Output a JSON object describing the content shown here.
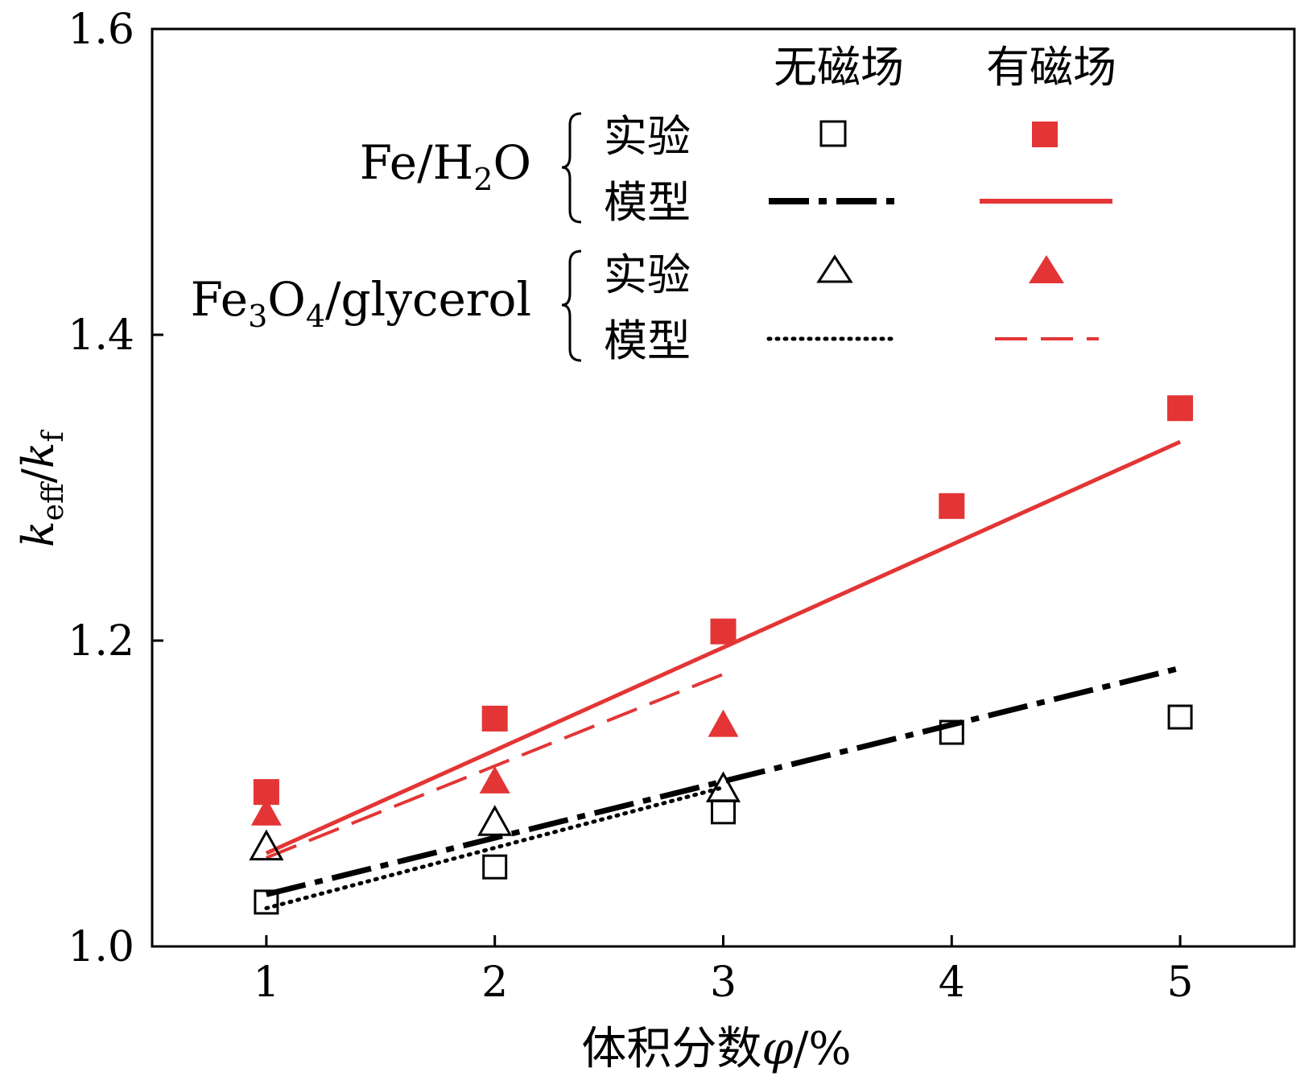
{
  "chart_data": {
    "type": "scatter",
    "title": "",
    "xlabel_prefix": "体积分数",
    "xlabel_symbol": "φ",
    "xlabel_unit": "/%",
    "ylabel": {
      "k1": "k",
      "sub1": "eff",
      "slash": "/",
      "k2": "k",
      "sub2": "f"
    },
    "xlim": [
      0.5,
      5.5
    ],
    "ylim": [
      1.0,
      1.6
    ],
    "xticks": [
      1,
      2,
      3,
      4,
      5
    ],
    "xtick_labels": [
      "1",
      "2",
      "3",
      "4",
      "5"
    ],
    "yticks": [
      1.0,
      1.2,
      1.4,
      1.6
    ],
    "ytick_labels": [
      "1.0",
      "1.2",
      "1.4",
      "1.6"
    ],
    "legend": {
      "header_no_field": "无磁场",
      "header_field": "有磁场",
      "group1": {
        "base": "Fe/H",
        "sub": "2",
        "tail": "O"
      },
      "group2": {
        "p1": "Fe",
        "s1": "3",
        "p2": "O",
        "s2": "4",
        "p3": "/glycerol"
      },
      "experiment": "实验",
      "model": "模型"
    },
    "series": [
      {
        "name": "Fe/H2O 实验 无磁场",
        "kind": "points",
        "marker": "square",
        "fill": "none",
        "color": "#000000",
        "x": [
          1,
          2,
          3,
          4,
          5
        ],
        "y": [
          1.029,
          1.052,
          1.088,
          1.14,
          1.15
        ]
      },
      {
        "name": "Fe/H2O 实验 有磁场",
        "kind": "points",
        "marker": "square",
        "fill": "solid",
        "color": "#e33535",
        "x": [
          1,
          2,
          3,
          4,
          5
        ],
        "y": [
          1.101,
          1.149,
          1.206,
          1.288,
          1.352
        ]
      },
      {
        "name": "Fe3O4/glycerol 实验 无磁场",
        "kind": "points",
        "marker": "triangle",
        "fill": "none",
        "color": "#000000",
        "x": [
          1,
          2,
          3
        ],
        "y": [
          1.066,
          1.082,
          1.104
        ]
      },
      {
        "name": "Fe3O4/glycerol 实验 有磁场",
        "kind": "points",
        "marker": "triangle",
        "fill": "solid",
        "color": "#e33535",
        "x": [
          1,
          2,
          3
        ],
        "y": [
          1.088,
          1.109,
          1.146
        ]
      },
      {
        "name": "Fe/H2O 模型 无磁场",
        "kind": "line",
        "dash": "dashdot",
        "color": "#000000",
        "x": [
          1,
          5
        ],
        "y": [
          1.034,
          1.182
        ]
      },
      {
        "name": "Fe/H2O 模型 有磁场",
        "kind": "line",
        "dash": "solid",
        "color": "#e33535",
        "x": [
          1,
          5
        ],
        "y": [
          1.061,
          1.33
        ]
      },
      {
        "name": "Fe3O4/glycerol 模型 无磁场",
        "kind": "line",
        "dash": "dotted",
        "color": "#000000",
        "x": [
          1,
          3
        ],
        "y": [
          1.025,
          1.104
        ]
      },
      {
        "name": "Fe3O4/glycerol 模型 有磁场",
        "kind": "line",
        "dash": "dashed",
        "color": "#e33535",
        "x": [
          1,
          3
        ],
        "y": [
          1.058,
          1.178
        ]
      }
    ]
  }
}
